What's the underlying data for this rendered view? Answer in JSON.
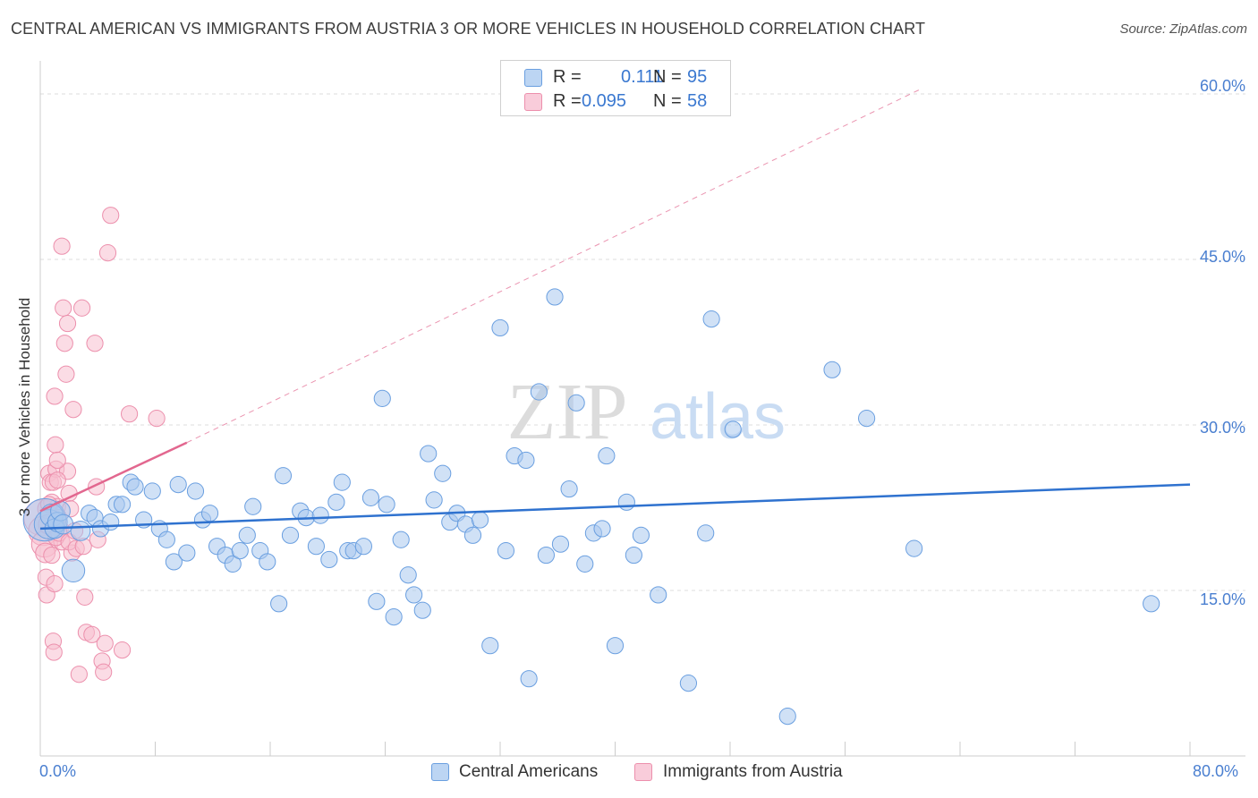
{
  "header": {
    "title": "CENTRAL AMERICAN VS IMMIGRANTS FROM AUSTRIA 3 OR MORE VEHICLES IN HOUSEHOLD CORRELATION CHART",
    "source": "Source: ZipAtlas.com"
  },
  "watermark": {
    "zip": "ZIP",
    "atlas": "atlas"
  },
  "legend_top": {
    "rows": [
      {
        "r_label": "R =",
        "r_value": "0.111",
        "n_label": "N =",
        "n_value": "95"
      },
      {
        "r_label": "R =",
        "r_value": "0.095",
        "n_label": "N =",
        "n_value": "58"
      }
    ]
  },
  "legend_bottom": {
    "items": [
      {
        "label": "Central Americans"
      },
      {
        "label": "Immigrants from Austria"
      }
    ]
  },
  "colors": {
    "blue_fill": "#a9c9ef",
    "blue_stroke": "#6a9fe0",
    "blue_line": "#2f72cf",
    "pink_fill": "#f7bfd0",
    "pink_stroke": "#ec8fac",
    "pink_line": "#e2678f",
    "grid": "#dddddd",
    "tick_text": "#4a7fd0"
  },
  "chart_data": {
    "type": "scatter",
    "title": "CENTRAL AMERICAN VS IMMIGRANTS FROM AUSTRIA 3 OR MORE VEHICLES IN HOUSEHOLD CORRELATION CHART",
    "xlabel": "",
    "ylabel": "3 or more Vehicles in Household",
    "xlim": [
      0,
      80
    ],
    "ylim": [
      0,
      63
    ],
    "x_tick_labels": [
      "0.0%",
      "80.0%"
    ],
    "y_ticks": [
      {
        "value": 15,
        "label": "15.0%"
      },
      {
        "value": 30,
        "label": "30.0%"
      },
      {
        "value": 45,
        "label": "45.0%"
      },
      {
        "value": 60,
        "label": "60.0%"
      }
    ],
    "grid": true,
    "series": [
      {
        "name": "Central Americans",
        "r": 0.111,
        "n": 95,
        "trend": {
          "x": [
            0,
            80
          ],
          "y": [
            20.6,
            24.6
          ],
          "style": "solid"
        },
        "points": [
          [
            0.3,
            21.4,
            26
          ],
          [
            0.6,
            21.0,
            18
          ],
          [
            0.8,
            21.8,
            14
          ],
          [
            1.0,
            20.6,
            12
          ],
          [
            1.2,
            21.2,
            12
          ],
          [
            1.4,
            22.2,
            12
          ],
          [
            1.6,
            21.0,
            12
          ],
          [
            2.3,
            16.8,
            14
          ],
          [
            2.8,
            20.4,
            12
          ],
          [
            3.4,
            22.0,
            10
          ],
          [
            3.8,
            21.6,
            10
          ],
          [
            4.2,
            20.6,
            10
          ],
          [
            4.9,
            21.2,
            10
          ],
          [
            5.3,
            22.8,
            10
          ],
          [
            5.7,
            22.8,
            10
          ],
          [
            6.3,
            24.8,
            10
          ],
          [
            6.6,
            24.4,
            10
          ],
          [
            7.2,
            21.4,
            10
          ],
          [
            7.8,
            24.0,
            10
          ],
          [
            8.3,
            20.6,
            10
          ],
          [
            8.8,
            19.6,
            10
          ],
          [
            9.3,
            17.6,
            10
          ],
          [
            9.6,
            24.6,
            10
          ],
          [
            10.2,
            18.4,
            10
          ],
          [
            10.8,
            24.0,
            10
          ],
          [
            11.3,
            21.4,
            10
          ],
          [
            11.8,
            22.0,
            10
          ],
          [
            12.3,
            19.0,
            10
          ],
          [
            12.9,
            18.2,
            10
          ],
          [
            13.4,
            17.4,
            10
          ],
          [
            13.9,
            18.6,
            10
          ],
          [
            14.4,
            20.0,
            10
          ],
          [
            14.8,
            22.6,
            10
          ],
          [
            15.3,
            18.6,
            10
          ],
          [
            15.8,
            17.6,
            10
          ],
          [
            16.6,
            13.8,
            10
          ],
          [
            16.9,
            25.4,
            10
          ],
          [
            17.4,
            20.0,
            10
          ],
          [
            18.1,
            22.2,
            10
          ],
          [
            18.5,
            21.6,
            10
          ],
          [
            19.2,
            19.0,
            10
          ],
          [
            19.5,
            21.8,
            10
          ],
          [
            20.1,
            17.8,
            10
          ],
          [
            20.6,
            23.0,
            10
          ],
          [
            21.0,
            24.8,
            10
          ],
          [
            21.4,
            18.6,
            10
          ],
          [
            21.8,
            18.6,
            10
          ],
          [
            22.5,
            19.0,
            10
          ],
          [
            23.0,
            23.4,
            10
          ],
          [
            23.4,
            14.0,
            10
          ],
          [
            23.8,
            32.4,
            10
          ],
          [
            24.1,
            22.8,
            10
          ],
          [
            24.6,
            12.6,
            10
          ],
          [
            25.1,
            19.6,
            10
          ],
          [
            25.6,
            16.4,
            10
          ],
          [
            26.0,
            14.6,
            10
          ],
          [
            26.6,
            13.2,
            10
          ],
          [
            27.0,
            27.4,
            10
          ],
          [
            27.4,
            23.2,
            10
          ],
          [
            28.0,
            25.6,
            10
          ],
          [
            28.5,
            21.2,
            10
          ],
          [
            29.0,
            22.0,
            10
          ],
          [
            29.6,
            21.0,
            10
          ],
          [
            30.1,
            20.0,
            10
          ],
          [
            30.6,
            21.4,
            10
          ],
          [
            31.3,
            10.0,
            10
          ],
          [
            32.0,
            38.8,
            10
          ],
          [
            32.4,
            18.6,
            10
          ],
          [
            33.0,
            27.2,
            10
          ],
          [
            33.8,
            26.8,
            10
          ],
          [
            34.0,
            7.0,
            10
          ],
          [
            34.7,
            33.0,
            10
          ],
          [
            35.2,
            18.2,
            10
          ],
          [
            35.8,
            41.6,
            10
          ],
          [
            36.2,
            19.2,
            10
          ],
          [
            36.8,
            24.2,
            10
          ],
          [
            37.3,
            32.0,
            10
          ],
          [
            37.9,
            17.4,
            10
          ],
          [
            38.5,
            20.2,
            10
          ],
          [
            39.1,
            20.6,
            10
          ],
          [
            39.4,
            27.2,
            10
          ],
          [
            40.0,
            10.0,
            10
          ],
          [
            40.8,
            23.0,
            10
          ],
          [
            41.3,
            18.2,
            10
          ],
          [
            41.8,
            20.0,
            10
          ],
          [
            43.0,
            14.6,
            10
          ],
          [
            45.1,
            6.6,
            10
          ],
          [
            46.3,
            20.2,
            10
          ],
          [
            46.7,
            39.6,
            10
          ],
          [
            48.2,
            29.6,
            10
          ],
          [
            52.0,
            3.6,
            10
          ],
          [
            55.1,
            35.0,
            10
          ],
          [
            57.5,
            30.6,
            10
          ],
          [
            60.8,
            18.8,
            10
          ],
          [
            77.3,
            13.8,
            10
          ]
        ]
      },
      {
        "name": "Immigrants from Austria",
        "r": 0.095,
        "n": 58,
        "trend": {
          "x": [
            0,
            10.2
          ],
          "y": [
            22.2,
            28.4
          ],
          "style": "solid",
          "extension": {
            "x": [
              10.2,
              61.2
            ],
            "y": [
              28.4,
              60.4
            ],
            "style": "dashed"
          }
        },
        "points": [
          [
            0.1,
            21.6,
            22
          ],
          [
            0.2,
            20.4,
            18
          ],
          [
            0.3,
            19.2,
            16
          ],
          [
            0.35,
            18.4,
            12
          ],
          [
            0.4,
            16.2,
            10
          ],
          [
            0.45,
            14.6,
            10
          ],
          [
            0.5,
            22.4,
            12
          ],
          [
            0.55,
            21.0,
            12
          ],
          [
            0.6,
            25.6,
            10
          ],
          [
            0.7,
            24.8,
            10
          ],
          [
            0.8,
            23.0,
            10
          ],
          [
            0.9,
            10.4,
            10
          ],
          [
            0.95,
            9.4,
            10
          ],
          [
            1.0,
            32.6,
            10
          ],
          [
            1.05,
            28.2,
            10
          ],
          [
            1.1,
            26.0,
            10
          ],
          [
            1.2,
            22.6,
            10
          ],
          [
            1.3,
            21.6,
            10
          ],
          [
            1.4,
            20.6,
            10
          ],
          [
            1.5,
            19.4,
            10
          ],
          [
            1.6,
            40.6,
            10
          ],
          [
            1.7,
            37.4,
            10
          ],
          [
            1.8,
            34.6,
            10
          ],
          [
            1.9,
            25.8,
            10
          ],
          [
            2.0,
            23.8,
            10
          ],
          [
            2.1,
            22.4,
            10
          ],
          [
            2.2,
            18.4,
            10
          ],
          [
            2.3,
            31.4,
            10
          ],
          [
            1.5,
            46.2,
            10
          ],
          [
            1.2,
            26.8,
            10
          ],
          [
            1.0,
            15.6,
            10
          ],
          [
            1.1,
            19.8,
            10
          ],
          [
            1.3,
            20.2,
            10
          ],
          [
            0.8,
            18.2,
            10
          ],
          [
            0.9,
            24.8,
            10
          ],
          [
            1.2,
            25.0,
            10
          ],
          [
            1.9,
            39.2,
            10
          ],
          [
            2.0,
            19.4,
            10
          ],
          [
            2.4,
            20.4,
            10
          ],
          [
            2.5,
            18.8,
            10
          ],
          [
            2.7,
            7.4,
            10
          ],
          [
            2.9,
            40.6,
            10
          ],
          [
            3.0,
            19.0,
            10
          ],
          [
            3.2,
            11.2,
            10
          ],
          [
            3.1,
            14.4,
            10
          ],
          [
            3.6,
            11.0,
            10
          ],
          [
            3.8,
            37.4,
            10
          ],
          [
            3.9,
            24.4,
            10
          ],
          [
            4.0,
            19.6,
            10
          ],
          [
            4.3,
            8.6,
            10
          ],
          [
            4.4,
            7.6,
            10
          ],
          [
            4.5,
            10.2,
            10
          ],
          [
            4.7,
            45.6,
            10
          ],
          [
            4.9,
            49.0,
            10
          ],
          [
            5.7,
            9.6,
            10
          ],
          [
            6.2,
            31.0,
            10
          ],
          [
            8.1,
            30.6,
            10
          ],
          [
            0.6,
            22.8,
            10
          ]
        ]
      }
    ]
  }
}
